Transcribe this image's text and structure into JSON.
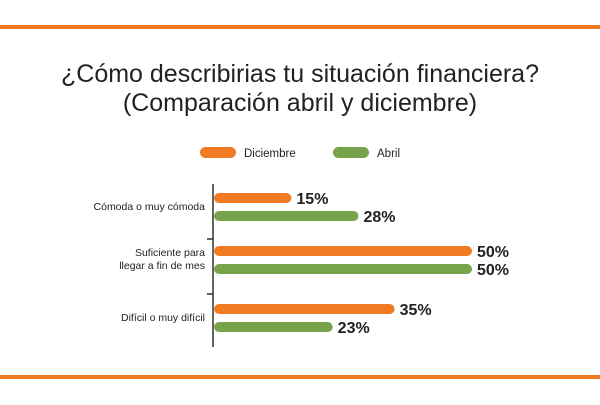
{
  "title_lines": [
    "¿Cómo describirias tu situación financiera?",
    "(Comparación abril y diciembre)"
  ],
  "colors": {
    "rule": "#f07b22",
    "diciembre": "#f07b22",
    "abril": "#77a34a",
    "axis": "#222222",
    "text": "#222222"
  },
  "chart_data": {
    "type": "bar",
    "orientation": "horizontal",
    "title": "¿Cómo describirias tu situación financiera? (Comparación abril y diciembre)",
    "categories": [
      [
        "Cómoda o muy cómoda"
      ],
      [
        "Suficiente para",
        "llegar a fin de mes"
      ],
      [
        "Difícil o muy difícil"
      ]
    ],
    "series": [
      {
        "name": "Diciembre",
        "values": [
          15,
          50,
          35
        ],
        "labels": [
          "15%",
          "50%",
          "35%"
        ]
      },
      {
        "name": "Abril",
        "values": [
          28,
          50,
          23
        ],
        "labels": [
          "28%",
          "50%",
          "23%"
        ]
      }
    ],
    "value_unit": "%",
    "xlim": [
      0,
      50
    ],
    "legend_position": "top",
    "grid": false
  }
}
